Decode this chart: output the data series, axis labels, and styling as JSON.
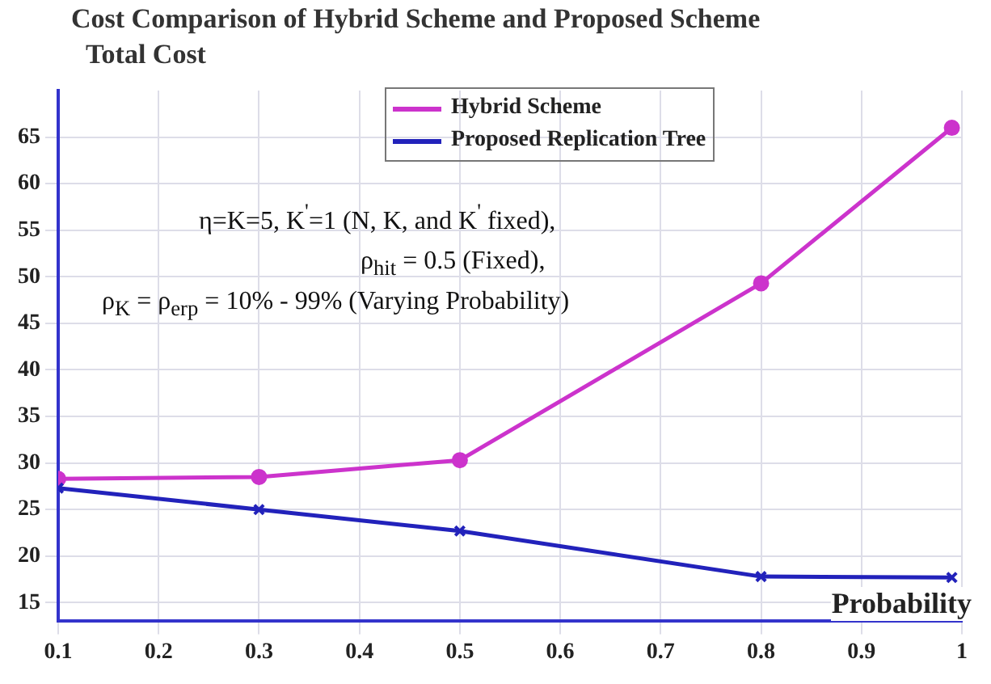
{
  "chart_data": {
    "type": "line",
    "title": "Cost Comparison of Hybrid Scheme and Proposed Scheme",
    "ylabel": "Total Cost",
    "xlabel": "Probability",
    "x": [
      0.1,
      0.3,
      0.5,
      0.8,
      0.99
    ],
    "series": [
      {
        "name": "Hybrid Scheme",
        "color": "#cc33cc",
        "marker": "circle",
        "values": [
          28.3,
          28.5,
          30.3,
          49.3,
          66
        ]
      },
      {
        "name": "Proposed Replication Tree",
        "color": "#2222bb",
        "marker": "cross",
        "values": [
          27.3,
          25.0,
          22.7,
          17.8,
          17.7
        ]
      }
    ],
    "xlim": [
      0.1,
      1
    ],
    "xticks": [
      0.1,
      0.2,
      0.3,
      0.4,
      0.5,
      0.6,
      0.7,
      0.8,
      0.9,
      1
    ],
    "ylim": [
      13,
      70
    ],
    "yticks": [
      15,
      20,
      25,
      30,
      35,
      40,
      45,
      50,
      55,
      60,
      65
    ],
    "annotations": [
      "η=K=5, K$^{'}$=1 (N, K, and K$^{'}$ fixed),",
      "ρ$_{hit}$ = 0.5 (Fixed),",
      "ρ$_{K}$ = ρ$_{erp}$ = 10% - 99% (Varying Probability)"
    ],
    "grid": true,
    "legend": "top",
    "line_style": "solid"
  }
}
